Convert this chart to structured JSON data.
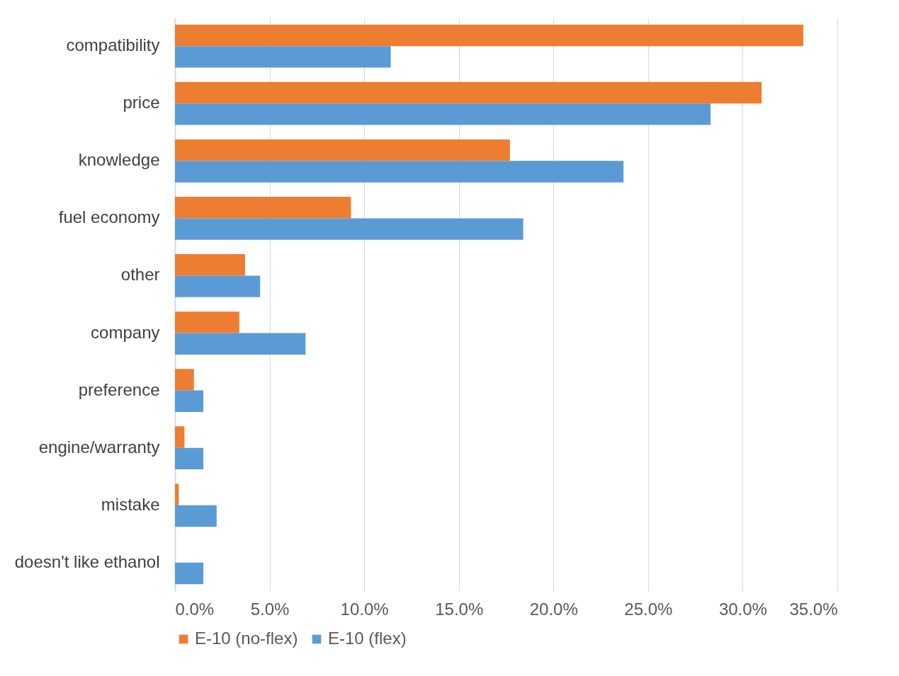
{
  "chart_data": {
    "type": "bar",
    "orientation": "horizontal",
    "categories": [
      "compatibility",
      "price",
      "knowledge",
      "fuel economy",
      "other",
      "company",
      "preference",
      "engine/warranty",
      "mistake",
      "doesn't like ethanol"
    ],
    "series": [
      {
        "name": "E-10 (no-flex)",
        "color": "#ed7d31",
        "values": [
          33.2,
          31.0,
          17.7,
          9.3,
          3.7,
          3.4,
          1.0,
          0.5,
          0.2,
          0
        ]
      },
      {
        "name": "E-10 (flex)",
        "color": "#5b9bd5",
        "values": [
          11.4,
          28.3,
          23.7,
          18.4,
          4.5,
          6.9,
          1.5,
          1.5,
          2.2,
          1.5
        ]
      }
    ],
    "xlim": [
      0,
      35
    ],
    "xticks": [
      {
        "value": 0,
        "label": "0.0%"
      },
      {
        "value": 5,
        "label": "5.0%"
      },
      {
        "value": 10,
        "label": "10.0%"
      },
      {
        "value": 15,
        "label": "15.0%"
      },
      {
        "value": 20,
        "label": "20.0%"
      },
      {
        "value": 25,
        "label": "25.0%"
      },
      {
        "value": 30,
        "label": "30.0%"
      },
      {
        "value": 35,
        "label": "35.0%"
      }
    ],
    "grid": "x",
    "legend": "bottom"
  }
}
